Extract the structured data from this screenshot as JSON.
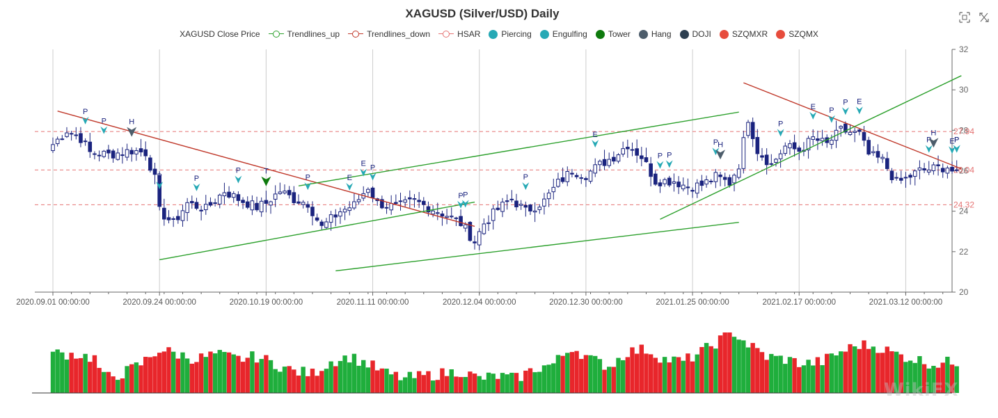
{
  "chart_data": {
    "type": "candlestick",
    "title": "XAGUSD (Silver/USD) Daily",
    "y_axis": {
      "range": [
        20,
        32
      ],
      "ticks": [
        20,
        22,
        24,
        26,
        28,
        30,
        32
      ],
      "side": "right"
    },
    "x_axis": {
      "labels": [
        "2020.09.01 00:00:00",
        "2020.09.24 00:00:00",
        "2020.10.19 00:00:00",
        "2020.11.11 00:00:00",
        "2020.12.04 00:00:00",
        "2020.12.30 00:00:00",
        "2021.01.25 00:00:00",
        "2021.02.17 00:00:00",
        "2021.03.12 00:00:00"
      ],
      "label_indices": [
        0,
        23,
        46,
        69,
        92,
        115,
        138,
        161,
        184
      ],
      "count": 196
    },
    "legend": {
      "placement": "top-center",
      "items": [
        {
          "name": "XAGUSD Close Price",
          "symbol": "none",
          "color": "#333333"
        },
        {
          "name": "Trendlines_up",
          "symbol": "line",
          "color": "#2ca02c"
        },
        {
          "name": "Trendlines_down",
          "symbol": "line",
          "color": "#c0392b"
        },
        {
          "name": "HSAR",
          "symbol": "line",
          "color": "#e57373"
        },
        {
          "name": "Piercing",
          "symbol": "dot",
          "color": "#26a9b5"
        },
        {
          "name": "Engulfing",
          "symbol": "dot",
          "color": "#26a9b5"
        },
        {
          "name": "Tower",
          "symbol": "dot",
          "color": "#0e7a0d"
        },
        {
          "name": "Hang",
          "symbol": "dot",
          "color": "#4d5d6b"
        },
        {
          "name": "DOJI",
          "symbol": "dot",
          "color": "#2c3e50"
        },
        {
          "name": "SZQMXR",
          "symbol": "dot",
          "color": "#e74c3c"
        },
        {
          "name": "SZQMX",
          "symbol": "dot",
          "color": "#e74c3c"
        }
      ]
    },
    "hsar_levels": [
      {
        "value": 27.94,
        "label": "27.94"
      },
      {
        "value": 26.04,
        "label": "26.04"
      },
      {
        "value": 24.32,
        "label": "24.32"
      }
    ],
    "trendlines_down": [
      {
        "from": [
          1,
          28.95
        ],
        "to": [
          91,
          23.25
        ]
      },
      {
        "from": [
          149,
          30.35
        ],
        "to": [
          196,
          26.1
        ]
      }
    ],
    "trendlines_up": [
      {
        "from": [
          23,
          21.6
        ],
        "to": [
          91,
          24.45
        ]
      },
      {
        "from": [
          53,
          25.25
        ],
        "to": [
          148,
          28.9
        ]
      },
      {
        "from": [
          61,
          21.05
        ],
        "to": [
          148,
          23.45
        ]
      },
      {
        "from": [
          131,
          23.6
        ],
        "to": [
          196,
          30.7
        ]
      }
    ],
    "candle_anchors": [
      [
        0,
        27.3
      ],
      [
        3,
        28.0
      ],
      [
        6,
        27.6
      ],
      [
        8,
        26.9
      ],
      [
        12,
        26.8
      ],
      [
        17,
        27.0
      ],
      [
        20,
        26.9
      ],
      [
        22,
        25.6
      ],
      [
        23,
        24.0
      ],
      [
        26,
        23.4
      ],
      [
        29,
        24.4
      ],
      [
        33,
        24.1
      ],
      [
        37,
        25.0
      ],
      [
        40,
        24.6
      ],
      [
        44,
        24.2
      ],
      [
        46,
        24.4
      ],
      [
        49,
        25.0
      ],
      [
        52,
        24.6
      ],
      [
        55,
        24.4
      ],
      [
        58,
        23.2
      ],
      [
        62,
        24.0
      ],
      [
        65,
        24.3
      ],
      [
        68,
        25.2
      ],
      [
        70,
        24.4
      ],
      [
        74,
        24.2
      ],
      [
        78,
        24.5
      ],
      [
        82,
        24.1
      ],
      [
        85,
        23.8
      ],
      [
        88,
        23.4
      ],
      [
        91,
        22.5
      ],
      [
        93,
        23.4
      ],
      [
        96,
        24.1
      ],
      [
        99,
        24.6
      ],
      [
        102,
        24.0
      ],
      [
        106,
        24.5
      ],
      [
        109,
        25.4
      ],
      [
        112,
        26.0
      ],
      [
        115,
        25.8
      ],
      [
        118,
        26.3
      ],
      [
        121,
        26.7
      ],
      [
        124,
        27.3
      ],
      [
        127,
        26.7
      ],
      [
        130,
        25.5
      ],
      [
        134,
        25.5
      ],
      [
        137,
        25.2
      ],
      [
        140,
        25.3
      ],
      [
        143,
        25.7
      ],
      [
        146,
        25.4
      ],
      [
        148,
        26.3
      ],
      [
        150,
        28.6
      ],
      [
        152,
        27.0
      ],
      [
        155,
        26.3
      ],
      [
        158,
        27.2
      ],
      [
        161,
        27.0
      ],
      [
        164,
        27.6
      ],
      [
        167,
        27.3
      ],
      [
        170,
        28.0
      ],
      [
        174,
        27.8
      ],
      [
        176,
        26.8
      ],
      [
        179,
        26.5
      ],
      [
        182,
        25.4
      ],
      [
        184,
        25.6
      ],
      [
        187,
        26.0
      ],
      [
        190,
        26.1
      ],
      [
        193,
        26.2
      ],
      [
        195,
        25.8
      ]
    ],
    "volume_anchors": [
      [
        0,
        0.82
      ],
      [
        5,
        0.8
      ],
      [
        9,
        0.72
      ],
      [
        11,
        0.32
      ],
      [
        15,
        0.4
      ],
      [
        19,
        0.6
      ],
      [
        23,
        0.9
      ],
      [
        27,
        0.8
      ],
      [
        31,
        0.7
      ],
      [
        35,
        0.8
      ],
      [
        40,
        0.7
      ],
      [
        44,
        0.75
      ],
      [
        48,
        0.6
      ],
      [
        52,
        0.45
      ],
      [
        56,
        0.4
      ],
      [
        60,
        0.65
      ],
      [
        64,
        0.75
      ],
      [
        68,
        0.6
      ],
      [
        72,
        0.4
      ],
      [
        76,
        0.3
      ],
      [
        80,
        0.35
      ],
      [
        84,
        0.4
      ],
      [
        88,
        0.45
      ],
      [
        92,
        0.3
      ],
      [
        96,
        0.35
      ],
      [
        100,
        0.3
      ],
      [
        104,
        0.5
      ],
      [
        108,
        0.6
      ],
      [
        112,
        0.95
      ],
      [
        116,
        0.7
      ],
      [
        120,
        0.55
      ],
      [
        124,
        0.85
      ],
      [
        128,
        0.9
      ],
      [
        132,
        0.7
      ],
      [
        136,
        0.65
      ],
      [
        140,
        0.85
      ],
      [
        144,
        1.1
      ],
      [
        147,
        1.25
      ],
      [
        150,
        1.0
      ],
      [
        154,
        0.75
      ],
      [
        158,
        0.7
      ],
      [
        162,
        0.6
      ],
      [
        166,
        0.65
      ],
      [
        170,
        0.85
      ],
      [
        174,
        1.0
      ],
      [
        178,
        0.95
      ],
      [
        182,
        0.8
      ],
      [
        186,
        0.7
      ],
      [
        190,
        0.6
      ],
      [
        195,
        0.65
      ]
    ],
    "markers": [
      {
        "i": 7,
        "label": "P",
        "type": "piercing"
      },
      {
        "i": 11,
        "label": "P",
        "type": "piercing"
      },
      {
        "i": 17,
        "label": "H",
        "type": "hang"
      },
      {
        "i": 23,
        "label": "P",
        "type": "piercing"
      },
      {
        "i": 31,
        "label": "P",
        "type": "piercing"
      },
      {
        "i": 40,
        "label": "P",
        "type": "piercing"
      },
      {
        "i": 46,
        "label": "T",
        "type": "tower"
      },
      {
        "i": 55,
        "label": "P",
        "type": "piercing"
      },
      {
        "i": 64,
        "label": "E",
        "type": "engulfing"
      },
      {
        "i": 67,
        "label": "E",
        "type": "engulfing"
      },
      {
        "i": 69,
        "label": "P",
        "type": "piercing"
      },
      {
        "i": 88,
        "label": "P",
        "type": "piercing"
      },
      {
        "i": 89,
        "label": "P",
        "type": "piercing"
      },
      {
        "i": 102,
        "label": "P",
        "type": "piercing"
      },
      {
        "i": 117,
        "label": "E",
        "type": "engulfing"
      },
      {
        "i": 131,
        "label": "P",
        "type": "piercing"
      },
      {
        "i": 133,
        "label": "P",
        "type": "piercing"
      },
      {
        "i": 143,
        "label": "P",
        "type": "piercing"
      },
      {
        "i": 144,
        "label": "H",
        "type": "hang"
      },
      {
        "i": 157,
        "label": "P",
        "type": "piercing"
      },
      {
        "i": 164,
        "label": "E",
        "type": "engulfing"
      },
      {
        "i": 168,
        "label": "P",
        "type": "piercing"
      },
      {
        "i": 171,
        "label": "P",
        "type": "piercing"
      },
      {
        "i": 174,
        "label": "E",
        "type": "engulfing"
      },
      {
        "i": 189,
        "label": "P",
        "type": "piercing"
      },
      {
        "i": 190,
        "label": "H",
        "type": "hang"
      },
      {
        "i": 194,
        "label": "E",
        "type": "engulfing"
      },
      {
        "i": 196,
        "label": "P",
        "type": "piercing"
      },
      {
        "i": 198,
        "label": "P",
        "type": "piercing"
      }
    ],
    "colors": {
      "up_candle": "#ffffff",
      "down_candle": "#1a237e",
      "candle_border": "#1a237e",
      "volume_up": "#1fae3c",
      "volume_down": "#e8262b",
      "grid": "#cccccc",
      "axis": "#666666",
      "hsar": "#e57373",
      "trend_up": "#2ca02c",
      "trend_down": "#c0392b",
      "piercing": "#26a9b5",
      "tower": "#0e7a0d",
      "hang": "#4d5d6b"
    }
  },
  "toolbox": {
    "zoom_icon": "zoom-icon",
    "restore_icon": "restore-icon"
  },
  "watermark": "WikiFX"
}
